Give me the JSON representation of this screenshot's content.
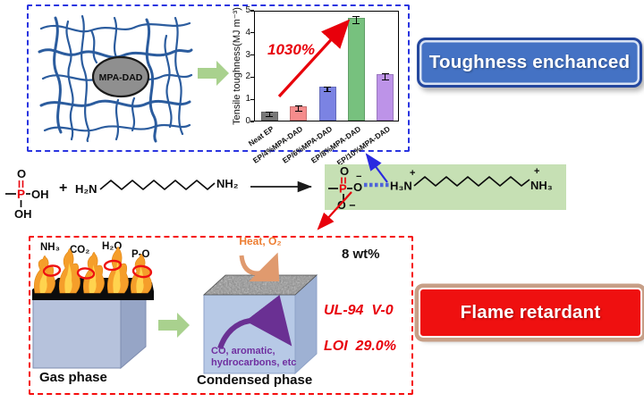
{
  "toughness_section": {
    "network_label": "MPA-DAD",
    "badge_label": "Toughness enchanced"
  },
  "chart_data": {
    "type": "bar",
    "title": "",
    "categories": [
      "Neat EP",
      "EP/4%MPA-DAD",
      "EP/6%MPA-DAD",
      "EP/8%MPA-DAD",
      "EP/10%MPA-DAD"
    ],
    "values": [
      0.4,
      0.65,
      1.55,
      4.65,
      2.1
    ],
    "errors": [
      0.08,
      0.1,
      0.08,
      0.15,
      0.13
    ],
    "bar_colors": [
      "#787878",
      "#f58c8c",
      "#7b83e3",
      "#77c17e",
      "#bd93e8"
    ],
    "xlabel": "",
    "ylabel": "Tensile toughness(MJ m⁻³)",
    "ylim": [
      0,
      5
    ],
    "yticks": [
      0,
      1,
      2,
      3,
      4,
      5
    ],
    "grid": false,
    "legend": "none",
    "annotation": "1030%",
    "annotation_color": "#e8000b"
  },
  "reaction": {
    "plus": "+",
    "reactant1": {
      "o_top": "O",
      "p": "P",
      "oh_right": "OH",
      "oh_below": "OH"
    },
    "reactant2": {
      "left_group": "H₂N",
      "right_group": "NH₂"
    },
    "product": {
      "o_top": "O",
      "p": "P",
      "o_right": "O",
      "minus": "−",
      "o_below": "O −",
      "h3n": "H₃N",
      "nh3": "NH₃",
      "plus_charge": "+"
    }
  },
  "flame_section": {
    "gas_labels": [
      "NH₃",
      "CO₂",
      "H₂O",
      "P-O"
    ],
    "gas_phase_label": "Gas phase",
    "condensed_phase_label": "Condensed phase",
    "heat_label": "Heat, O₂",
    "released_line1": "CO, aromatic,",
    "released_line2": "hydrocarbons, etc",
    "loading_label": "8 wt%",
    "ul94_label": "UL-94  V-0",
    "loi_label": "LOI  29.0%",
    "badge_label": "Flame retardant"
  },
  "colors": {
    "toughness_badge_bg": "#4472c4",
    "flame_badge_bg": "#ef1010",
    "blue_panel_border": "#2a35e0",
    "red_panel_border": "#f50d0d",
    "product_highlight": "#c6e0b4",
    "green_arrow": "#a9d18e",
    "purple": "#7030a0",
    "heat_orange": "#ed7d31",
    "annotation_red": "#e8000b",
    "network_blue": "#2b5c9e"
  }
}
